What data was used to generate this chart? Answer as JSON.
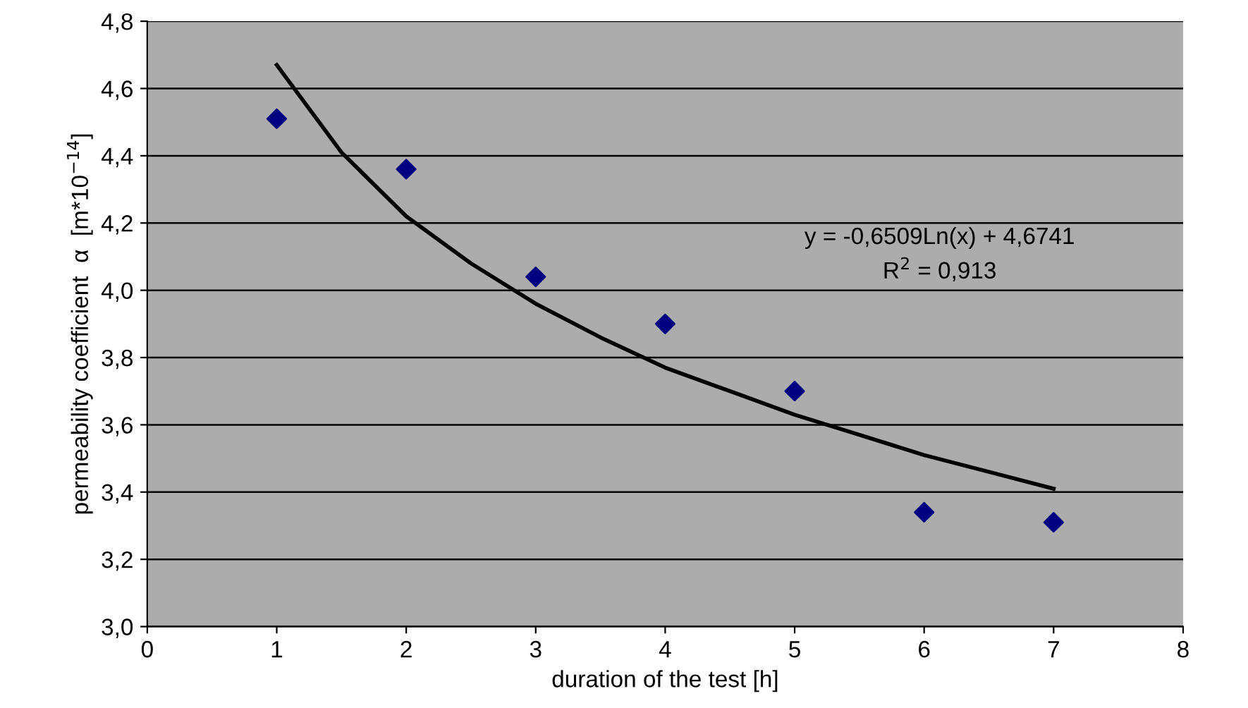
{
  "chart_data": {
    "type": "scatter",
    "xlabel": "duration of the test [h]",
    "ylabel": "permeability coefficient  α  [m*10$^{−14}$]",
    "marker": "diamond",
    "grid": "y",
    "legend": false,
    "xlim": [
      0,
      8
    ],
    "xticks": [
      0,
      1,
      2,
      3,
      4,
      5,
      6,
      7,
      8
    ],
    "ylim": [
      3.0,
      4.8
    ],
    "yticks": [
      {
        "value": 3.0,
        "label": "3,0"
      },
      {
        "value": 3.2,
        "label": "3,2"
      },
      {
        "value": 3.4,
        "label": "3,4"
      },
      {
        "value": 3.6,
        "label": "3,6"
      },
      {
        "value": 3.8,
        "label": "3,8"
      },
      {
        "value": 4.0,
        "label": "4,0"
      },
      {
        "value": 4.2,
        "label": "4,2"
      },
      {
        "value": 4.4,
        "label": "4,4"
      },
      {
        "value": 4.6,
        "label": "4,6"
      },
      {
        "value": 4.8,
        "label": "4,8"
      }
    ],
    "series": [
      {
        "color": "#000080",
        "x": [
          1,
          2,
          3,
          4,
          5,
          6,
          7
        ],
        "values": [
          4.51,
          4.36,
          4.04,
          3.9,
          3.7,
          3.34,
          3.31
        ]
      },
      {
        "type": "line",
        "color": "#000000",
        "marker": "none",
        "line_style": "solid",
        "x": [
          1,
          1.5,
          2,
          2.5,
          3,
          3.5,
          4,
          4.5,
          5,
          5.5,
          6,
          6.5,
          7
        ],
        "values": [
          4.67,
          4.41,
          4.22,
          4.08,
          3.96,
          3.86,
          3.77,
          3.7,
          3.63,
          3.57,
          3.51,
          3.46,
          3.41
        ]
      }
    ],
    "annotations": [
      "y = -0,6509Ln(x) + 4,6741",
      "R$^{2}$ = 0,913"
    ]
  }
}
